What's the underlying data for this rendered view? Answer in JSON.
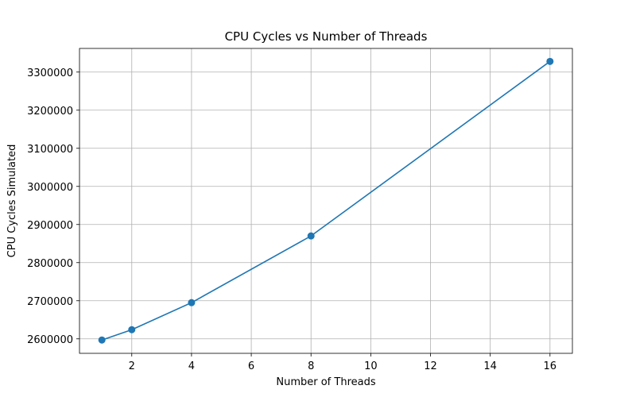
{
  "chart_data": {
    "type": "line",
    "title": "CPU Cycles vs Number of Threads",
    "xlabel": "Number of Threads",
    "ylabel": "CPU Cycles Simulated",
    "x": [
      1,
      2,
      4,
      8,
      16
    ],
    "series": [
      {
        "values": [
          2597000,
          2624000,
          2695000,
          2870000,
          3328000
        ],
        "color": "#1f77b4",
        "marker": "circle"
      }
    ],
    "xlim": [
      0.25,
      16.75
    ],
    "ylim": [
      2562000,
      3362000
    ],
    "xticks": [
      2,
      4,
      6,
      8,
      10,
      12,
      14,
      16
    ],
    "yticks": [
      2600000,
      2700000,
      2800000,
      2900000,
      3000000,
      3100000,
      3200000,
      3300000
    ],
    "xtick_labels": [
      "2",
      "4",
      "6",
      "8",
      "10",
      "12",
      "14",
      "16"
    ],
    "ytick_labels": [
      "2600000",
      "2700000",
      "2800000",
      "2900000",
      "3000000",
      "3100000",
      "3200000",
      "3300000"
    ],
    "grid": true,
    "legend": false
  }
}
